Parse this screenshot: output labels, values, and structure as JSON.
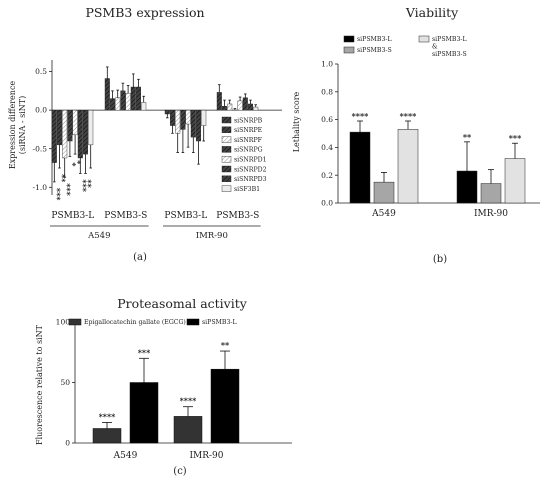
{
  "panels": {
    "a": {
      "label": "(a)",
      "chart_data": {
        "type": "bar",
        "title": "PSMB3 expression",
        "ylabel_line1": "Expression difference",
        "ylabel_line2": "(siRNA - siNT)",
        "ylim": [
          -1.1,
          0.65
        ],
        "yticks": [
          -1.0,
          -0.5,
          0.0,
          0.5
        ],
        "ytick_labels": [
          "-1.0",
          "-0.5",
          "0.0",
          "0.5"
        ],
        "categories": [
          "PSMB3-L",
          "PSMB3-S",
          "PSMB3-L",
          "PSMB3-S"
        ],
        "groups": [
          {
            "label": "A549",
            "categories": [
              0,
              1
            ]
          },
          {
            "label": "IMR-90",
            "categories": [
              2,
              3
            ]
          }
        ],
        "legend_position": "right",
        "series": [
          {
            "name": "siSNRPB",
            "pattern": "hatch-dark",
            "values": [
              -0.68,
              0.41,
              -0.05,
              0.23
            ],
            "errors": [
              0.25,
              0.15,
              0.05,
              0.1
            ]
          },
          {
            "name": "siSNRPE",
            "pattern": "hatch-dark",
            "values": [
              -0.45,
              0.15,
              -0.2,
              0.05
            ],
            "errors": [
              0.3,
              0.1,
              0.1,
              0.08
            ]
          },
          {
            "name": "siSNRPF",
            "pattern": "hatch-light",
            "values": [
              -0.62,
              0.16,
              -0.3,
              0.08
            ],
            "errors": [
              0.25,
              0.1,
              0.25,
              0.05
            ]
          },
          {
            "name": "siSNRPG",
            "pattern": "hatch-dark",
            "values": [
              -0.4,
              0.25,
              -0.25,
              0.0
            ],
            "errors": [
              0.2,
              0.1,
              0.3,
              0.02
            ]
          },
          {
            "name": "siSNRPD1",
            "pattern": "hatch-light",
            "values": [
              -0.32,
              0.22,
              -0.18,
              0.12
            ],
            "errors": [
              0.25,
              0.1,
              0.3,
              0.05
            ]
          },
          {
            "name": "siSNRPD2",
            "pattern": "hatch-dark",
            "values": [
              -0.62,
              0.3,
              -0.35,
              0.16
            ],
            "errors": [
              0.2,
              0.17,
              0.2,
              0.05
            ]
          },
          {
            "name": "siSNRPD3",
            "pattern": "hatch-dark",
            "values": [
              -0.57,
              0.3,
              -0.4,
              0.08
            ],
            "errors": [
              0.25,
              0.1,
              0.3,
              0.05
            ]
          },
          {
            "name": "siSF3B1",
            "pattern": "light",
            "values": [
              -0.45,
              0.1,
              -0.2,
              0.04
            ],
            "errors": [
              0.3,
              0.08,
              0.2,
              0.03
            ]
          }
        ],
        "annotations": [
          {
            "category": 0,
            "series": 0,
            "text": "***"
          },
          {
            "category": 0,
            "series": 1,
            "text": "**"
          },
          {
            "category": 0,
            "series": 2,
            "text": "***"
          },
          {
            "category": 0,
            "series": 3,
            "text": "*"
          },
          {
            "category": 0,
            "series": 4,
            "text": "*"
          },
          {
            "category": 0,
            "series": 5,
            "text": "***"
          },
          {
            "category": 0,
            "series": 6,
            "text": "**"
          }
        ]
      }
    },
    "b": {
      "label": "(b)",
      "chart_data": {
        "type": "bar",
        "title": "Viability",
        "ylabel": "Lethality score",
        "ylim": [
          0.0,
          1.0
        ],
        "yticks": [
          0.0,
          0.2,
          0.4,
          0.6,
          0.8,
          1.0
        ],
        "ytick_labels": [
          "0.0",
          "0.2",
          "0.4",
          "0.6",
          "0.8",
          "1.0"
        ],
        "categories": [
          "A549",
          "IMR-90"
        ],
        "legend_position": "top",
        "series": [
          {
            "name": "siPSMB3-L",
            "color": "#000000",
            "values": [
              0.51,
              0.23
            ],
            "errors": [
              0.08,
              0.21
            ],
            "stars": [
              "****",
              "**"
            ]
          },
          {
            "name": "siPSMB3-S",
            "color": "#a6a6a6",
            "values": [
              0.15,
              0.14
            ],
            "errors": [
              0.07,
              0.1
            ],
            "stars": [
              "",
              ""
            ]
          },
          {
            "name": "siPSMB3-L & siPSMB3-S",
            "name_lines": [
              "siPSMB3-L",
              "&",
              "siPSMB3-S"
            ],
            "color": "#e2e2e2",
            "values": [
              0.53,
              0.32
            ],
            "errors": [
              0.06,
              0.11
            ],
            "stars": [
              "****",
              "***"
            ]
          }
        ]
      }
    },
    "c": {
      "label": "(c)",
      "chart_data": {
        "type": "bar",
        "title": "Proteasomal activity",
        "ylabel": "Fluorescence relative to siNT",
        "ylim": [
          0,
          100
        ],
        "yticks": [
          0,
          50,
          100
        ],
        "ytick_labels": [
          "0",
          "50",
          "100"
        ],
        "categories": [
          "A549",
          "IMR-90"
        ],
        "legend_position": "top",
        "series": [
          {
            "name": "Epigallocatechin gallate (EGCG)",
            "color": "#333333",
            "values": [
              12,
              22
            ],
            "errors": [
              5,
              8
            ],
            "stars": [
              "****",
              "****"
            ]
          },
          {
            "name": "siPSMB3-L",
            "color": "#000000",
            "values": [
              50,
              61
            ],
            "errors": [
              20,
              15
            ],
            "stars": [
              "***",
              "**"
            ]
          }
        ]
      }
    }
  }
}
